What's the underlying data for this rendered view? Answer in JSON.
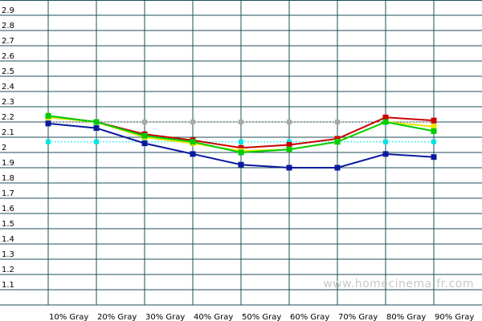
{
  "watermark": "www.homecinema-fr.com",
  "chart_data": {
    "type": "line",
    "title": "",
    "xlabel": "",
    "ylabel": "",
    "categories": [
      "10% Gray",
      "20% Gray",
      "30% Gray",
      "40% Gray",
      "50% Gray",
      "60% Gray",
      "70% Gray",
      "80% Gray",
      "90% Gray"
    ],
    "ylim": [
      1.0,
      3.0
    ],
    "yticks": [
      "1.1",
      "1.2",
      "1.3",
      "1.4",
      "1.5",
      "1.6",
      "1.7",
      "1.8",
      "1.9",
      "2",
      "2.1",
      "2.2",
      "2.3",
      "2.4",
      "2.5",
      "2.6",
      "2.7",
      "2.8",
      "2.9"
    ],
    "grid": true,
    "legend": "none",
    "colors": {
      "grid": "#1f4e5a",
      "red": "#cc0000",
      "green": "#00cc00",
      "yellow": "#e8e800",
      "blue": "#0a1aa0",
      "reference_target": "#aaaaaa",
      "reference_cyan": "#00e5e5"
    },
    "series": [
      {
        "color": "red",
        "values": [
          2.24,
          2.2,
          2.12,
          2.08,
          2.03,
          2.05,
          2.09,
          2.23,
          2.21
        ]
      },
      {
        "color": "yellow",
        "values": [
          2.23,
          2.2,
          2.1,
          2.06,
          2.01,
          2.02,
          2.07,
          2.2,
          2.17
        ]
      },
      {
        "color": "green",
        "values": [
          2.24,
          2.2,
          2.11,
          2.07,
          2.0,
          2.02,
          2.07,
          2.2,
          2.14
        ]
      },
      {
        "color": "blue",
        "values": [
          2.19,
          2.16,
          2.06,
          1.99,
          1.92,
          1.9,
          1.9,
          1.99,
          1.97
        ]
      }
    ],
    "reference_lines": [
      {
        "color": "reference_target",
        "value": 2.2,
        "style": "dotted"
      },
      {
        "color": "reference_cyan",
        "value": 2.07,
        "style": "dotted"
      }
    ]
  }
}
